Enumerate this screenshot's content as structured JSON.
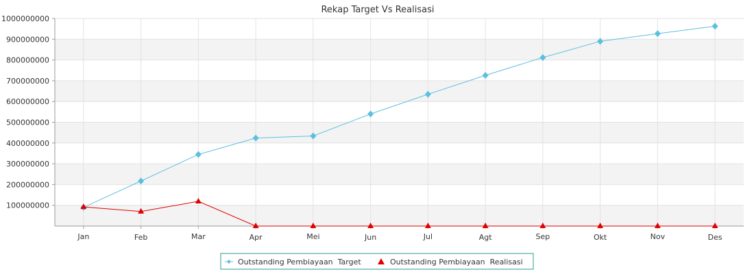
{
  "chart_data": {
    "type": "line",
    "title": "Rekap Target Vs Realisasi",
    "xlabel": "",
    "ylabel": "",
    "categories": [
      "Jan",
      "Feb",
      "Mar",
      "Apr",
      "Mei",
      "Jun",
      "Jul",
      "Agt",
      "Sep",
      "Okt",
      "Nov",
      "Des"
    ],
    "ylim": [
      0,
      1000000000
    ],
    "yticks": [
      "100000000",
      "200000000",
      "300000000",
      "400000000",
      "500000000",
      "600000000",
      "700000000",
      "800000000",
      "900000000",
      "1000000000"
    ],
    "grid": true,
    "legend_position": "bottom-center",
    "series": [
      {
        "name": "Outstanding Pembiayaan  Target",
        "color": "#5bc0de",
        "marker": "diamond",
        "values": [
          90000000,
          217000000,
          345000000,
          424000000,
          434000000,
          540000000,
          635000000,
          726000000,
          812000000,
          890000000,
          927000000,
          963000000
        ]
      },
      {
        "name": "Outstanding Pembiayaan  Realisasi",
        "color": "#e00000",
        "marker": "triangle",
        "values": [
          92000000,
          70000000,
          119000000,
          0,
          0,
          0,
          0,
          0,
          0,
          0,
          0,
          0
        ]
      }
    ]
  }
}
